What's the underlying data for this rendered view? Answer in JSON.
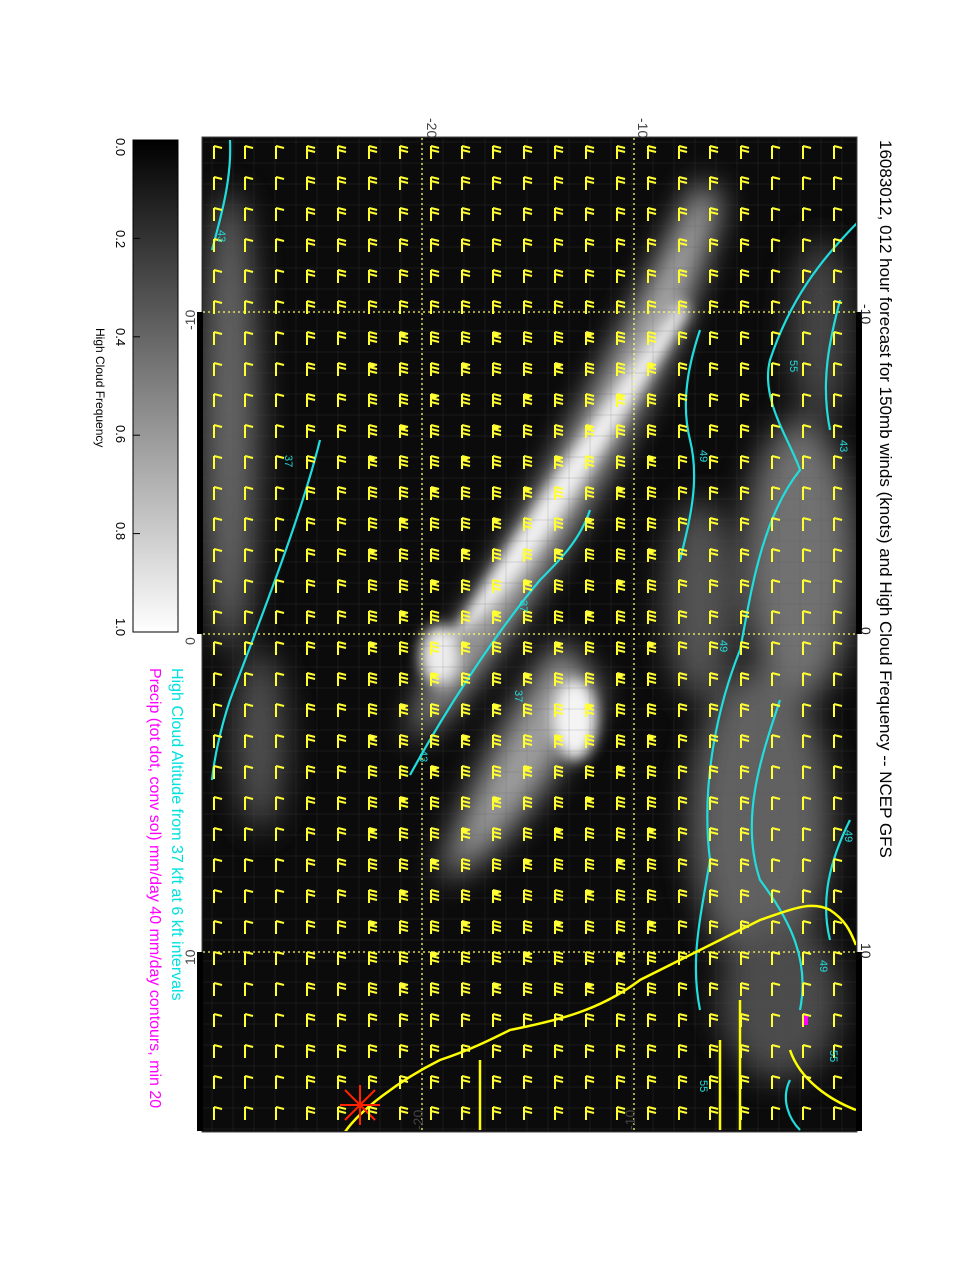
{
  "title": "16083012, 012 hour forecast for 150mb winds (knots) and High Cloud Frequency -- NCEP GFS",
  "legend_cyan": "High Cloud Altitude from 37 kft at 6 kft intervals",
  "legend_magenta": "Precip (tot dot, conv sol) mm/day 40 mm/day contours, min 20",
  "colorbar": {
    "label": "High Cloud Frequency",
    "ticks": [
      "0.0",
      "0.2",
      "0.4",
      "0.6",
      "0.8",
      "1.0"
    ]
  },
  "axes": {
    "top_ticks": [
      "-20",
      "-10"
    ],
    "bottom_ticks": [
      "-20",
      "-10"
    ],
    "left_ticks": [
      "-10",
      "0",
      "10"
    ],
    "right_ticks": [
      "-10",
      "0",
      "10"
    ]
  },
  "contour_labels": [
    "37",
    "37",
    "37",
    "43",
    "43",
    "43",
    "49",
    "49",
    "49",
    "49",
    "55",
    "55",
    "55"
  ],
  "colors": {
    "barb": "#ffff33",
    "contour": "#22dddd",
    "coast": "#ffff00",
    "precip": "#ff00ff",
    "cyan_text": "#00e0e0",
    "magenta_text": "#ff00ff",
    "marker": "#ff2200"
  }
}
